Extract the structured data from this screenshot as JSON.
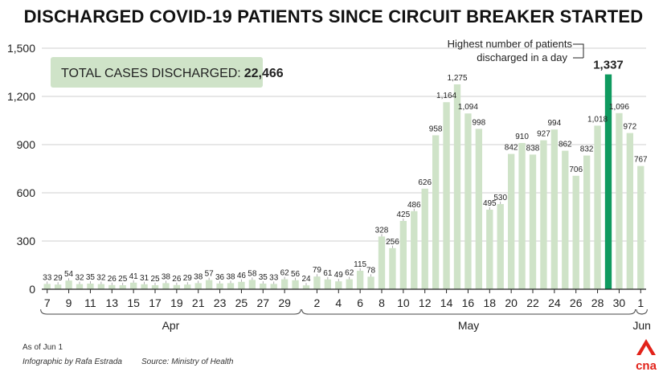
{
  "title": "DISCHARGED COVID-19 PATIENTS SINCE CIRCUIT BREAKER STARTED",
  "summary_box": {
    "label": "TOTAL CASES DISCHARGED:",
    "value": "22,466",
    "color": "#cfe3c8"
  },
  "annotation": {
    "line1": "Highest number of patients",
    "line2": "discharged in a day"
  },
  "footer": {
    "as_of": "As of Jun 1",
    "credit": "Infographic by Rafa Estrada",
    "source": "Source: Ministry of Health"
  },
  "logo": {
    "text": "cna",
    "color": "#e2231a"
  },
  "colors": {
    "bar": "#cfe3c8",
    "highlight": "#0f9a5f"
  },
  "chart_data": {
    "type": "bar",
    "title": "DISCHARGED COVID-19 PATIENTS SINCE CIRCUIT BREAKER STARTED",
    "ylim": [
      0,
      1500
    ],
    "y_ticks": [
      "0",
      "300",
      "600",
      "900",
      "1,200",
      "1,500"
    ],
    "grid": true,
    "categories": [
      "Apr 7",
      "Apr 8",
      "Apr 9",
      "Apr 10",
      "Apr 11",
      "Apr 12",
      "Apr 13",
      "Apr 14",
      "Apr 15",
      "Apr 16",
      "Apr 17",
      "Apr 18",
      "Apr 19",
      "Apr 20",
      "Apr 21",
      "Apr 22",
      "Apr 23",
      "Apr 24",
      "Apr 25",
      "Apr 26",
      "Apr 27",
      "Apr 28",
      "Apr 29",
      "Apr 30",
      "May 1",
      "May 2",
      "May 3",
      "May 4",
      "May 5",
      "May 6",
      "May 7",
      "May 8",
      "May 9",
      "May 10",
      "May 11",
      "May 12",
      "May 13",
      "May 14",
      "May 15",
      "May 16",
      "May 17",
      "May 18",
      "May 19",
      "May 20",
      "May 21",
      "May 22",
      "May 23",
      "May 24",
      "May 25",
      "May 26",
      "May 27",
      "May 28",
      "May 29",
      "May 30",
      "May 31",
      "Jun 1"
    ],
    "values": [
      33,
      29,
      54,
      32,
      35,
      32,
      26,
      25,
      41,
      31,
      25,
      38,
      26,
      29,
      38,
      57,
      36,
      38,
      46,
      58,
      35,
      33,
      62,
      56,
      24,
      79,
      61,
      49,
      62,
      115,
      78,
      328,
      256,
      425,
      486,
      626,
      958,
      1164,
      1275,
      1094,
      998,
      495,
      530,
      842,
      910,
      838,
      927,
      994,
      862,
      706,
      832,
      1018,
      1337,
      1096,
      972,
      767
    ],
    "data_labels": [
      "33",
      "29",
      "54",
      "32",
      "35",
      "32",
      "26",
      "25",
      "41",
      "31",
      "25",
      "38",
      "26",
      "29",
      "38",
      "57",
      "36",
      "38",
      "46",
      "58",
      "35",
      "33",
      "62",
      "56",
      "24",
      "79",
      "61",
      "49",
      "62",
      "115",
      "78",
      "328",
      "256",
      "425",
      "486",
      "626",
      "958",
      "1,164",
      "1,275",
      "1,094",
      "998",
      "495",
      "530",
      "842",
      "910",
      "838",
      "927",
      "994",
      "862",
      "706",
      "832",
      "1,018",
      "1,337",
      "1,096",
      "972",
      "767"
    ],
    "x_tick_labels": [
      "7",
      "9",
      "11",
      "13",
      "15",
      "17",
      "19",
      "21",
      "23",
      "25",
      "27",
      "29",
      "2",
      "4",
      "6",
      "8",
      "10",
      "12",
      "14",
      "16",
      "18",
      "20",
      "22",
      "24",
      "26",
      "28",
      "30",
      "1"
    ],
    "x_tick_indices": [
      0,
      2,
      4,
      6,
      8,
      10,
      12,
      14,
      16,
      18,
      20,
      22,
      25,
      27,
      29,
      31,
      33,
      35,
      37,
      39,
      41,
      43,
      45,
      47,
      49,
      51,
      53,
      55
    ],
    "month_labels": [
      "Apr",
      "May",
      "Jun"
    ],
    "highlight_index": 52
  }
}
